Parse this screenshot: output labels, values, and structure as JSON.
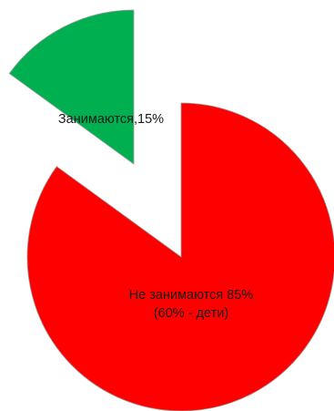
{
  "chart_data": {
    "type": "pie",
    "exploded": true,
    "slices": [
      {
        "category": "Занимаются",
        "value": 15,
        "label_lines": [
          "Занимаются,15%"
        ],
        "color": "#00b050"
      },
      {
        "category": "Не занимаются",
        "value": 85,
        "label_lines": [
          "Не занимаются 85%",
          "(60% - дети)"
        ],
        "color": "#ff0000"
      }
    ],
    "slice_border_color": "#9c9c9c"
  }
}
